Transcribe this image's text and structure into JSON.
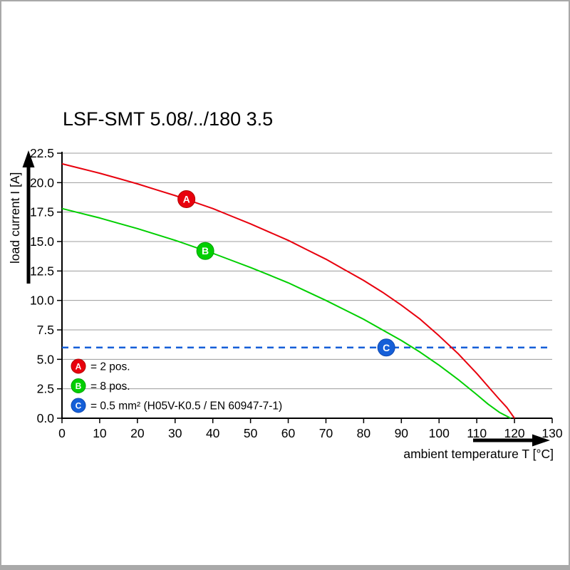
{
  "window": {
    "background": "#ffffff",
    "border_color": "#a9a9a9"
  },
  "title": "LSF-SMT 5.08/../180 3.5",
  "chart_data": {
    "type": "line",
    "title": "LSF-SMT 5.08/../180 3.5",
    "xlabel": "ambient temperature T [°C]",
    "ylabel": "load current I [A]",
    "xlim": [
      0,
      130
    ],
    "ylim": [
      0,
      22.5
    ],
    "xticks": [
      0,
      10,
      20,
      30,
      40,
      50,
      60,
      70,
      80,
      90,
      100,
      110,
      120,
      130
    ],
    "yticks": [
      0,
      2.5,
      5,
      7.5,
      10,
      12.5,
      15,
      17.5,
      20,
      22.5
    ],
    "ytick_labels": [
      "0.0",
      "2.5",
      "5.0",
      "7.5",
      "10.0",
      "12.5",
      "15.0",
      "17.5",
      "20.0",
      "22.5"
    ],
    "grid": "horizontal",
    "legend_position": "inside-bottom-left",
    "colors": {
      "grid": "#9c9c9c",
      "axis": "#000000"
    },
    "series": [
      {
        "name": "A",
        "legend_label": "= 2 pos.",
        "color": "#e8000d",
        "marker_stroke": "#b00000",
        "marker": {
          "x": 33,
          "y": 18.6
        },
        "points": [
          [
            0,
            21.6
          ],
          [
            5,
            21.2
          ],
          [
            10,
            20.8
          ],
          [
            15,
            20.35
          ],
          [
            20,
            19.9
          ],
          [
            25,
            19.4
          ],
          [
            30,
            18.9
          ],
          [
            35,
            18.35
          ],
          [
            40,
            17.8
          ],
          [
            45,
            17.15
          ],
          [
            50,
            16.5
          ],
          [
            55,
            15.8
          ],
          [
            60,
            15.1
          ],
          [
            65,
            14.3
          ],
          [
            70,
            13.5
          ],
          [
            75,
            12.6
          ],
          [
            80,
            11.7
          ],
          [
            85,
            10.7
          ],
          [
            90,
            9.6
          ],
          [
            95,
            8.4
          ],
          [
            100,
            7.0
          ],
          [
            105,
            5.5
          ],
          [
            110,
            3.8
          ],
          [
            113,
            2.7
          ],
          [
            116,
            1.6
          ],
          [
            118,
            0.9
          ],
          [
            120,
            0.0
          ]
        ]
      },
      {
        "name": "B",
        "legend_label": "= 8 pos.",
        "color": "#00cf00",
        "marker_stroke": "#00a000",
        "marker": {
          "x": 38,
          "y": 14.2
        },
        "points": [
          [
            0,
            17.8
          ],
          [
            5,
            17.4
          ],
          [
            10,
            17.0
          ],
          [
            15,
            16.55
          ],
          [
            20,
            16.1
          ],
          [
            25,
            15.6
          ],
          [
            30,
            15.1
          ],
          [
            35,
            14.55
          ],
          [
            40,
            14.0
          ],
          [
            45,
            13.4
          ],
          [
            50,
            12.8
          ],
          [
            55,
            12.15
          ],
          [
            60,
            11.5
          ],
          [
            65,
            10.75
          ],
          [
            70,
            10.0
          ],
          [
            75,
            9.2
          ],
          [
            80,
            8.4
          ],
          [
            85,
            7.5
          ],
          [
            90,
            6.6
          ],
          [
            95,
            5.6
          ],
          [
            100,
            4.5
          ],
          [
            105,
            3.3
          ],
          [
            110,
            2.0
          ],
          [
            113,
            1.2
          ],
          [
            116,
            0.5
          ],
          [
            119,
            0.0
          ]
        ]
      }
    ],
    "threshold": {
      "name": "C",
      "legend_label": "= 0.5 mm² (H05V-K0.5 / EN 60947-7-1)",
      "color": "#155fd8",
      "marker_stroke": "#0d47b0",
      "value": 6.0,
      "line_style": "dashed",
      "marker": {
        "x": 86,
        "y": 6.0
      }
    }
  }
}
